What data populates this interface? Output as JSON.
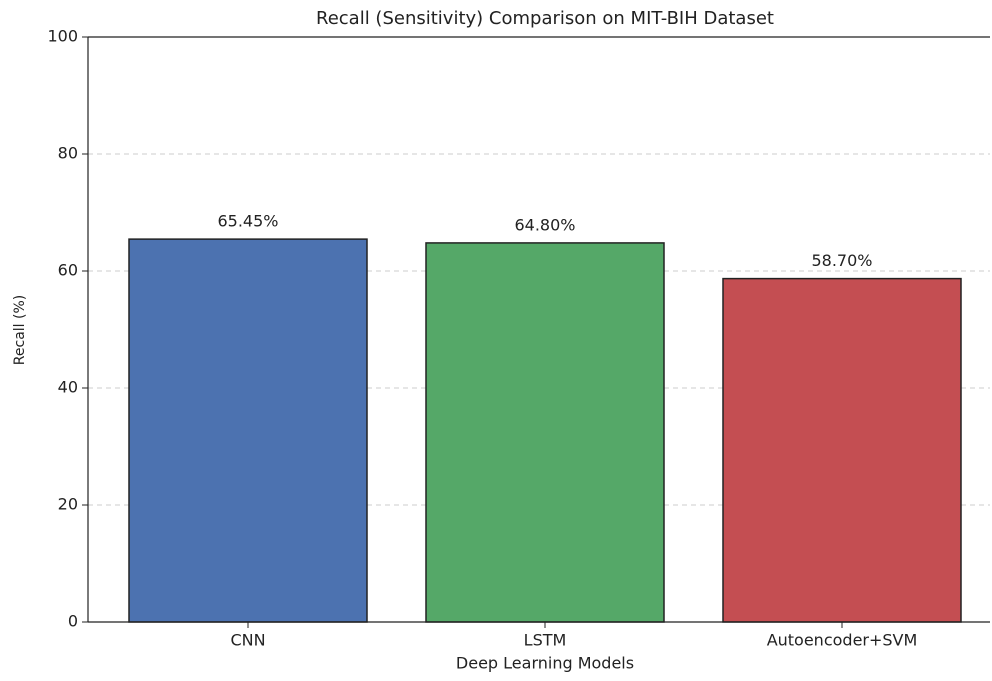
{
  "chart_data": {
    "type": "bar",
    "title": "Recall (Sensitivity) Comparison on MIT-BIH Dataset",
    "xlabel": "Deep Learning Models",
    "ylabel": "Recall (%)",
    "categories": [
      "CNN",
      "LSTM",
      "Autoencoder+SVM"
    ],
    "values": [
      65.45,
      64.8,
      58.7
    ],
    "value_labels": [
      "65.45%",
      "64.80%",
      "58.70%"
    ],
    "colors": [
      "#4c72b0",
      "#55a868",
      "#c44e52"
    ],
    "ylim": [
      0,
      100
    ],
    "yticks": [
      0,
      20,
      40,
      60,
      80,
      100
    ],
    "grid": true
  }
}
